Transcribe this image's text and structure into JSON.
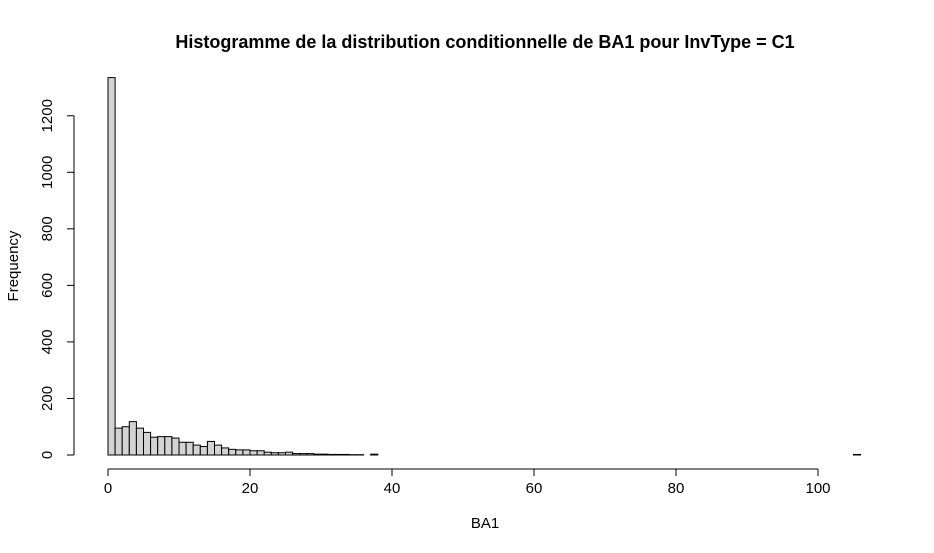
{
  "chart_data": {
    "type": "bar",
    "title": "Histogramme de la distribution conditionnelle de BA1 pour InvType = C1",
    "xlabel": "BA1",
    "ylabel": "Frequency",
    "bin_width": 1,
    "bins_start": [
      0,
      1,
      2,
      3,
      4,
      5,
      6,
      7,
      8,
      9,
      10,
      11,
      12,
      13,
      14,
      15,
      16,
      17,
      18,
      19,
      20,
      21,
      22,
      23,
      24,
      25,
      26,
      27,
      28,
      29,
      30,
      31,
      32,
      33,
      34,
      35,
      36,
      37,
      38,
      39,
      40,
      41,
      42,
      43,
      44,
      45,
      46,
      47,
      48,
      49,
      50,
      51,
      52,
      53,
      54,
      55,
      56,
      57,
      58,
      59,
      60,
      61,
      62,
      63,
      64,
      65,
      66,
      67,
      68,
      69,
      70,
      71,
      72,
      73,
      74,
      75,
      76,
      77,
      78,
      79,
      80,
      81,
      82,
      83,
      84,
      85,
      86,
      87,
      88,
      89,
      90,
      91,
      92,
      93,
      94,
      95,
      96,
      97,
      98,
      99,
      100,
      101,
      102,
      103,
      104,
      105
    ],
    "values": [
      1335,
      95,
      100,
      118,
      95,
      80,
      63,
      65,
      65,
      60,
      45,
      45,
      35,
      30,
      48,
      35,
      25,
      20,
      18,
      18,
      15,
      15,
      10,
      8,
      8,
      10,
      5,
      5,
      5,
      3,
      3,
      2,
      2,
      2,
      1,
      1,
      0,
      3,
      0,
      0,
      0,
      0,
      0,
      0,
      0,
      0,
      0,
      0,
      0,
      0,
      0,
      0,
      0,
      0,
      0,
      0,
      0,
      0,
      0,
      0,
      0,
      0,
      0,
      0,
      0,
      0,
      0,
      0,
      0,
      0,
      0,
      0,
      0,
      0,
      0,
      0,
      0,
      0,
      0,
      0,
      0,
      0,
      0,
      0,
      0,
      0,
      0,
      0,
      0,
      0,
      0,
      0,
      0,
      0,
      0,
      0,
      0,
      0,
      0,
      0,
      0,
      0,
      0,
      0,
      0,
      2
    ],
    "xlim": [
      0,
      106
    ],
    "ylim": [
      0,
      1335
    ],
    "xticks": [
      0,
      20,
      40,
      60,
      80,
      100
    ],
    "yticks": [
      0,
      200,
      400,
      600,
      800,
      1000,
      1200
    ],
    "grid": false,
    "colors": {
      "bar_fill": "#d3d3d3",
      "bar_stroke": "#000000"
    }
  }
}
